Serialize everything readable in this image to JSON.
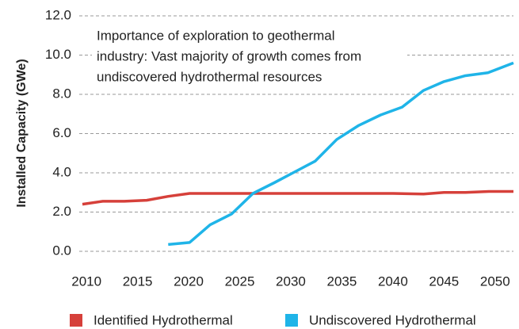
{
  "chart_data": {
    "type": "line",
    "ylabel": "Installed Capacity (GWe)",
    "annotation_lines": [
      "Importance of exploration to geothermal",
      "industry: Vast majority of growth comes from",
      "undiscovered hydrothermal resources"
    ],
    "xlim": [
      2009.6,
      2051.8
    ],
    "xticks": [
      2010,
      2015,
      2020,
      2025,
      2030,
      2035,
      2040,
      2045,
      2050
    ],
    "ylim": [
      0,
      12
    ],
    "yticks": [
      {
        "value": 0,
        "label": "0.0"
      },
      {
        "value": 2,
        "label": "2.0"
      },
      {
        "value": 4,
        "label": "4.0"
      },
      {
        "value": 6,
        "label": "6.0"
      },
      {
        "value": 8,
        "label": "8.0"
      },
      {
        "value": 10,
        "label": "10.0"
      },
      {
        "value": 12,
        "label": "12.0"
      }
    ],
    "grid": true,
    "series": [
      {
        "name": "Identified Hydrothermal",
        "color": "#d6403a",
        "x": [
          2009.6,
          2011.6,
          2013.7,
          2015.9,
          2018.0,
          2020.1,
          2025,
          2030,
          2035,
          2040,
          2043.0,
          2045.0,
          2047.1,
          2049.4,
          2051.8
        ],
        "values": [
          2.4,
          2.55,
          2.55,
          2.6,
          2.8,
          2.95,
          2.95,
          2.95,
          2.95,
          2.95,
          2.92,
          3.0,
          3.0,
          3.05,
          3.05
        ]
      },
      {
        "name": "Undiscovered Hydrothermal",
        "color": "#1fb4e8",
        "x": [
          2018.0,
          2020.1,
          2022.1,
          2024.2,
          2026.3,
          2028.4,
          2030.4,
          2032.4,
          2034.5,
          2036.6,
          2038.8,
          2040.9,
          2043.0,
          2045.0,
          2047.1,
          2049.3,
          2051.8
        ],
        "values": [
          0.35,
          0.45,
          1.35,
          1.9,
          2.95,
          3.5,
          4.05,
          4.6,
          5.7,
          6.4,
          6.95,
          7.35,
          8.2,
          8.65,
          8.95,
          9.1,
          9.6
        ]
      }
    ]
  }
}
